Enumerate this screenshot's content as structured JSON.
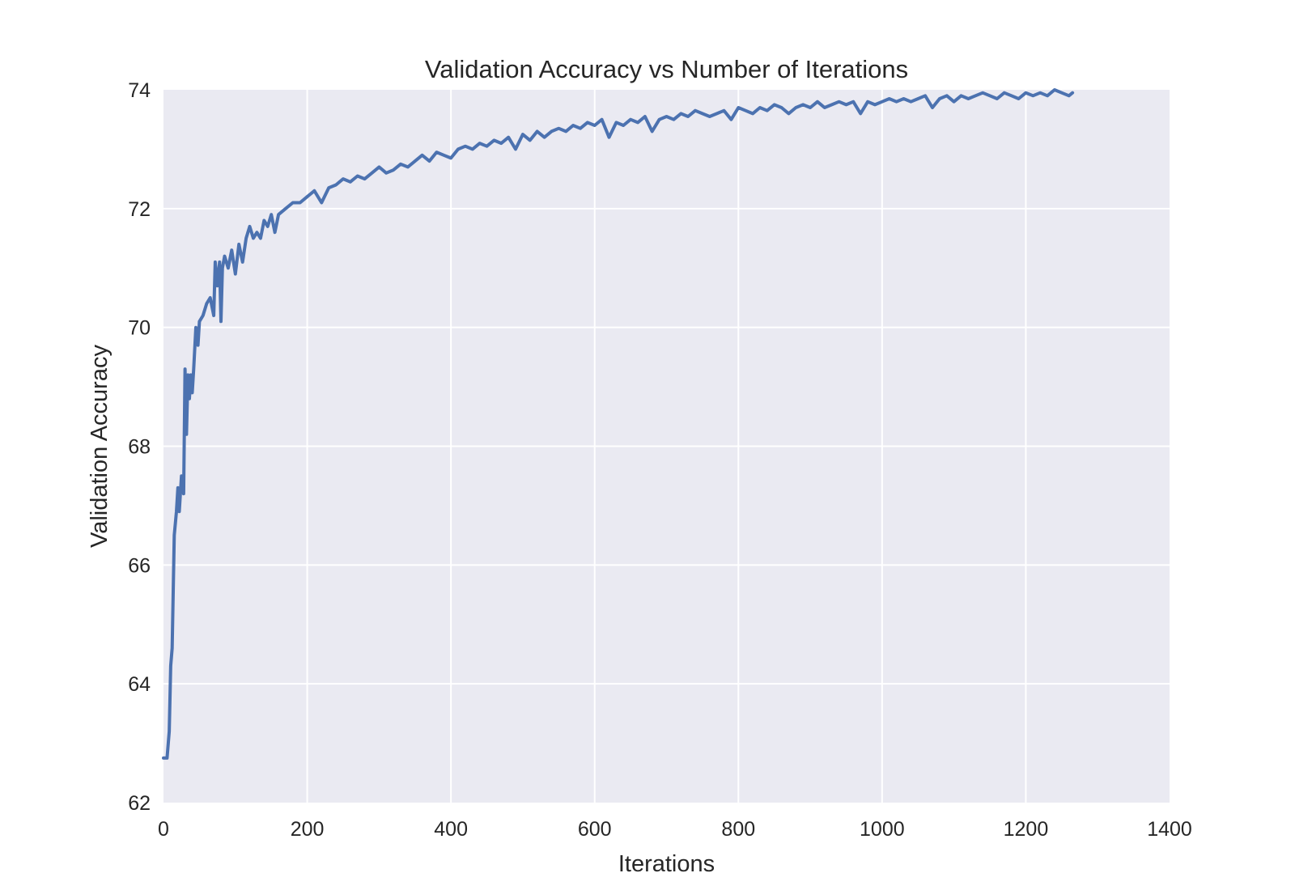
{
  "chart_data": {
    "type": "line",
    "title": "Validation Accuracy vs Number of Iterations",
    "xlabel": "Iterations",
    "ylabel": "Validation Accuracy",
    "xlim": [
      0,
      1400
    ],
    "ylim": [
      62,
      74
    ],
    "xticks": [
      0,
      200,
      400,
      600,
      800,
      1000,
      1200,
      1400
    ],
    "yticks": [
      62,
      64,
      66,
      68,
      70,
      72,
      74
    ],
    "grid": true,
    "background": "#eaeaf2",
    "grid_color": "#ffffff",
    "series": [
      {
        "color": "#4c72b0",
        "x": [
          0,
          5,
          8,
          10,
          12,
          15,
          18,
          20,
          22,
          25,
          28,
          30,
          32,
          34,
          36,
          38,
          40,
          42,
          45,
          48,
          50,
          55,
          60,
          65,
          70,
          72,
          75,
          78,
          80,
          82,
          85,
          90,
          95,
          100,
          105,
          110,
          115,
          120,
          125,
          130,
          135,
          140,
          145,
          150,
          155,
          160,
          170,
          180,
          190,
          200,
          210,
          220,
          230,
          240,
          250,
          260,
          270,
          280,
          290,
          300,
          310,
          320,
          330,
          340,
          350,
          360,
          370,
          380,
          390,
          400,
          410,
          420,
          430,
          440,
          450,
          460,
          470,
          480,
          490,
          500,
          510,
          520,
          530,
          540,
          550,
          560,
          570,
          580,
          590,
          600,
          610,
          620,
          630,
          640,
          650,
          660,
          670,
          680,
          690,
          700,
          710,
          720,
          730,
          740,
          750,
          760,
          770,
          780,
          790,
          800,
          810,
          820,
          830,
          840,
          850,
          860,
          870,
          880,
          890,
          900,
          910,
          920,
          930,
          940,
          950,
          960,
          970,
          980,
          990,
          1000,
          1010,
          1020,
          1030,
          1040,
          1050,
          1060,
          1070,
          1080,
          1090,
          1100,
          1110,
          1120,
          1130,
          1140,
          1150,
          1160,
          1170,
          1180,
          1190,
          1200,
          1210,
          1220,
          1230,
          1240,
          1250,
          1260,
          1265
        ],
        "y": [
          62.75,
          62.75,
          63.2,
          64.3,
          64.6,
          66.5,
          66.9,
          67.3,
          66.9,
          67.5,
          67.2,
          69.3,
          68.2,
          69.2,
          68.8,
          69.2,
          68.9,
          69.3,
          70.0,
          69.7,
          70.1,
          70.2,
          70.4,
          70.5,
          70.2,
          71.1,
          70.7,
          71.1,
          70.1,
          71.0,
          71.2,
          71.0,
          71.3,
          70.9,
          71.4,
          71.1,
          71.5,
          71.7,
          71.5,
          71.6,
          71.5,
          71.8,
          71.7,
          71.9,
          71.6,
          71.9,
          72.0,
          72.1,
          72.1,
          72.2,
          72.3,
          72.1,
          72.35,
          72.4,
          72.5,
          72.45,
          72.55,
          72.5,
          72.6,
          72.7,
          72.6,
          72.65,
          72.75,
          72.7,
          72.8,
          72.9,
          72.8,
          72.95,
          72.9,
          72.85,
          73.0,
          73.05,
          73.0,
          73.1,
          73.05,
          73.15,
          73.1,
          73.2,
          73.0,
          73.25,
          73.15,
          73.3,
          73.2,
          73.3,
          73.35,
          73.3,
          73.4,
          73.35,
          73.45,
          73.4,
          73.5,
          73.2,
          73.45,
          73.4,
          73.5,
          73.45,
          73.55,
          73.3,
          73.5,
          73.55,
          73.5,
          73.6,
          73.55,
          73.65,
          73.6,
          73.55,
          73.6,
          73.65,
          73.5,
          73.7,
          73.65,
          73.6,
          73.7,
          73.65,
          73.75,
          73.7,
          73.6,
          73.7,
          73.75,
          73.7,
          73.8,
          73.7,
          73.75,
          73.8,
          73.75,
          73.8,
          73.6,
          73.8,
          73.75,
          73.8,
          73.85,
          73.8,
          73.85,
          73.8,
          73.85,
          73.9,
          73.7,
          73.85,
          73.9,
          73.8,
          73.9,
          73.85,
          73.9,
          73.95,
          73.9,
          73.85,
          73.95,
          73.9,
          73.85,
          73.95,
          73.9,
          73.95,
          73.9,
          74.0,
          73.95,
          73.9,
          73.95
        ]
      }
    ]
  }
}
